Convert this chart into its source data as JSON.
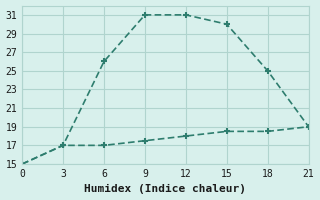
{
  "xlabel": "Humidex (Indice chaleur)",
  "upper_x": [
    0,
    3,
    6,
    9,
    12,
    15,
    18,
    21
  ],
  "upper_y": [
    15,
    17,
    26,
    31,
    31,
    30,
    25,
    19
  ],
  "lower_x": [
    0,
    3,
    6,
    9,
    12,
    15,
    18,
    21
  ],
  "lower_y": [
    15,
    17,
    17,
    17.5,
    18,
    18.5,
    18.5,
    19
  ],
  "line_color": "#2e7d6e",
  "bg_color": "#d8f0ec",
  "grid_color": "#b0d4ce",
  "xlim": [
    0,
    21
  ],
  "ylim": [
    15,
    32
  ],
  "xticks": [
    0,
    3,
    6,
    9,
    12,
    15,
    18,
    21
  ],
  "yticks": [
    15,
    17,
    19,
    21,
    23,
    25,
    27,
    29,
    31
  ],
  "tick_fontsize": 7,
  "label_fontsize": 8
}
